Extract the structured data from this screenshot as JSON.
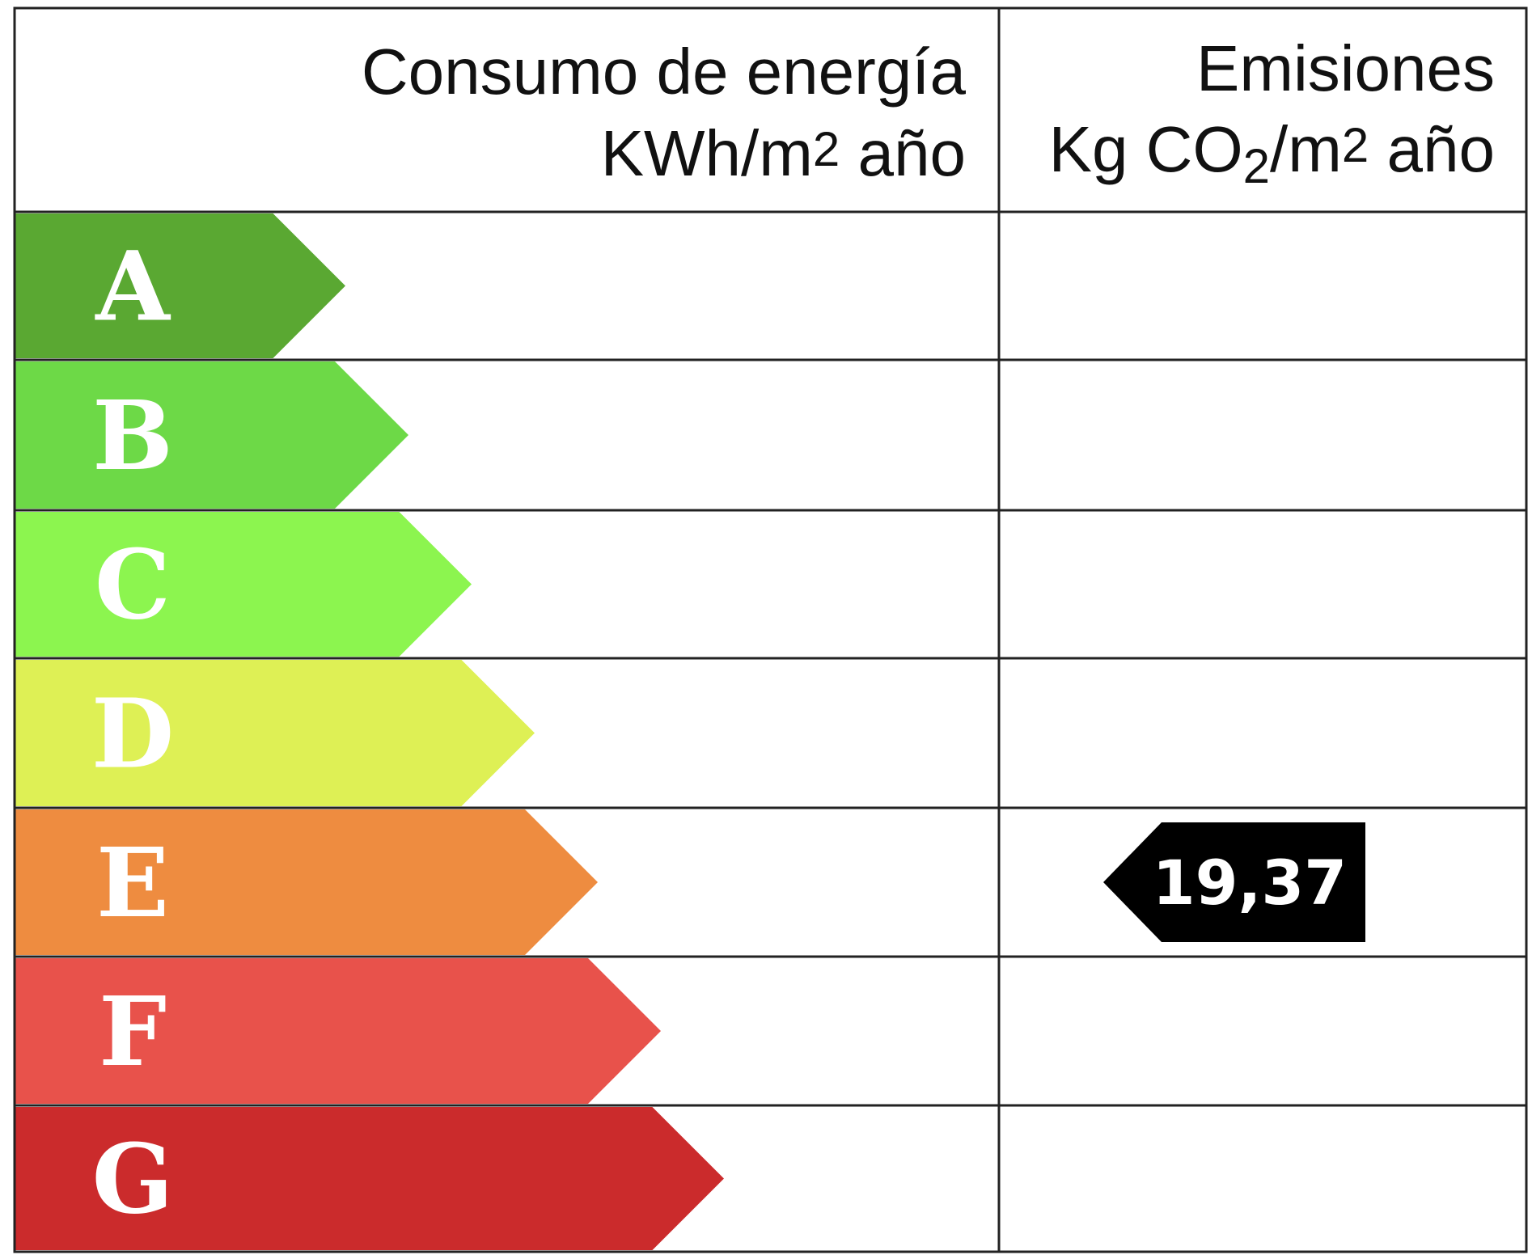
{
  "header": {
    "energy_title": "Consumo de energía",
    "energy_unit": [
      "KWh/m",
      "2",
      " año"
    ],
    "emissions_title": "Emisiones",
    "emissions_unit": [
      "Kg CO",
      "2",
      "/m",
      "2",
      " año"
    ]
  },
  "ratings": [
    {
      "letter": "A",
      "color": "#5aa832"
    },
    {
      "letter": "B",
      "color": "#6dd947"
    },
    {
      "letter": "C",
      "color": "#8cf54f"
    },
    {
      "letter": "D",
      "color": "#def055"
    },
    {
      "letter": "E",
      "color": "#ee8c40"
    },
    {
      "letter": "F",
      "color": "#e8524b"
    },
    {
      "letter": "G",
      "color": "#cb2b2c"
    }
  ],
  "emissions_marker": {
    "rating": "E",
    "value": "19,37"
  }
}
